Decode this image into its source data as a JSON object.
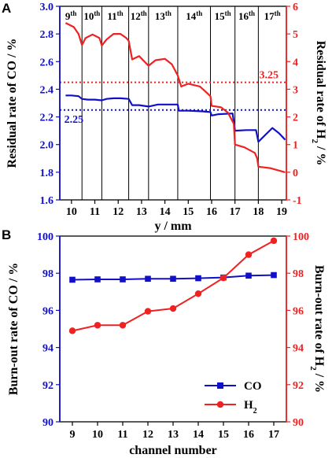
{
  "chart_data": [
    {
      "panel_label": "A",
      "type": "line",
      "xlabel": "y / mm",
      "ylabel_left": "Residual rate of CO / %",
      "ylabel_right_main": "Residual rate of H",
      "ylabel_right_sub": "2",
      "ylabel_right_tail": " / %",
      "xlim": [
        9.5,
        19.2
      ],
      "ylim_left": [
        1.6,
        3.0
      ],
      "ylim_right": [
        -1,
        6
      ],
      "x_ticks": [
        "10",
        "11",
        "12",
        "13",
        "14",
        "15",
        "16",
        "17",
        "18",
        "19"
      ],
      "y_left_ticks": [
        "1.6",
        "1.8",
        "2.0",
        "2.2",
        "2.4",
        "2.6",
        "2.8",
        "3.0"
      ],
      "y_right_ticks": [
        "-1",
        "0",
        "1",
        "2",
        "3",
        "4",
        "5",
        "6"
      ],
      "colors": {
        "co": "#1010c8",
        "h2": "#ee2222"
      },
      "regions": [
        {
          "num": "9",
          "sup": "th"
        },
        {
          "num": "10",
          "sup": "th"
        },
        {
          "num": "11",
          "sup": "th"
        },
        {
          "num": "12",
          "sup": "th"
        },
        {
          "num": "13",
          "sup": "th"
        },
        {
          "num": "14",
          "sup": "th"
        },
        {
          "num": "15",
          "sup": "th"
        },
        {
          "num": "16",
          "sup": "th"
        },
        {
          "num": "17",
          "sup": "th"
        }
      ],
      "region_bounds": [
        9.5,
        10.45,
        11.3,
        12.45,
        13.3,
        14.55,
        15.95,
        17.0,
        18.0,
        19.2
      ],
      "reference_lines": [
        {
          "series": "H2",
          "axis": "right",
          "value": 3.25,
          "label": "3.25"
        },
        {
          "series": "CO",
          "axis": "left",
          "value": 2.25,
          "label": "2.25"
        }
      ],
      "series": [
        {
          "axis": "left",
          "points": [
            [
              9.75,
              2.355
            ],
            [
              10.0,
              2.355
            ],
            [
              10.3,
              2.35
            ],
            [
              10.45,
              2.33
            ],
            [
              10.7,
              2.325
            ],
            [
              11.0,
              2.325
            ],
            [
              11.3,
              2.32
            ],
            [
              11.5,
              2.33
            ],
            [
              11.8,
              2.335
            ],
            [
              12.1,
              2.335
            ],
            [
              12.45,
              2.33
            ],
            [
              12.6,
              2.285
            ],
            [
              12.9,
              2.285
            ],
            [
              13.3,
              2.275
            ],
            [
              13.7,
              2.29
            ],
            [
              14.0,
              2.29
            ],
            [
              14.3,
              2.29
            ],
            [
              14.55,
              2.29
            ],
            [
              14.6,
              2.245
            ],
            [
              15.0,
              2.245
            ],
            [
              15.6,
              2.24
            ],
            [
              15.95,
              2.235
            ],
            [
              16.0,
              2.21
            ],
            [
              16.3,
              2.22
            ],
            [
              16.9,
              2.225
            ],
            [
              17.0,
              2.1
            ],
            [
              17.5,
              2.105
            ],
            [
              17.9,
              2.105
            ],
            [
              18.0,
              2.02
            ],
            [
              18.3,
              2.07
            ],
            [
              18.6,
              2.12
            ],
            [
              18.9,
              2.08
            ],
            [
              19.15,
              2.035
            ]
          ]
        },
        {
          "axis": "right",
          "points": [
            [
              9.75,
              5.4
            ],
            [
              10.1,
              5.25
            ],
            [
              10.3,
              5.0
            ],
            [
              10.45,
              4.6
            ],
            [
              10.6,
              4.85
            ],
            [
              10.9,
              4.98
            ],
            [
              11.2,
              4.85
            ],
            [
              11.3,
              4.58
            ],
            [
              11.5,
              4.8
            ],
            [
              11.8,
              5.0
            ],
            [
              12.1,
              5.0
            ],
            [
              12.35,
              4.85
            ],
            [
              12.45,
              4.75
            ],
            [
              12.6,
              4.08
            ],
            [
              12.9,
              4.2
            ],
            [
              13.3,
              3.85
            ],
            [
              13.6,
              4.05
            ],
            [
              14.0,
              4.1
            ],
            [
              14.3,
              3.9
            ],
            [
              14.55,
              3.5
            ],
            [
              14.7,
              3.1
            ],
            [
              15.0,
              3.2
            ],
            [
              15.5,
              3.1
            ],
            [
              15.95,
              2.75
            ],
            [
              16.0,
              2.4
            ],
            [
              16.4,
              2.35
            ],
            [
              16.7,
              2.15
            ],
            [
              16.95,
              1.75
            ],
            [
              17.0,
              1.0
            ],
            [
              17.4,
              0.9
            ],
            [
              17.85,
              0.7
            ],
            [
              17.95,
              0.5
            ],
            [
              18.0,
              0.2
            ],
            [
              18.5,
              0.15
            ],
            [
              19.15,
              0.0
            ]
          ]
        }
      ]
    },
    {
      "panel_label": "B",
      "type": "line",
      "xlabel": "channel number",
      "ylabel_left": "Burn-out rate of CO / %",
      "ylabel_right_main": "Burn-out rate of H",
      "ylabel_right_sub": "2",
      "ylabel_right_tail": " / %",
      "x": [
        9,
        10,
        11,
        12,
        13,
        14,
        15,
        16,
        17
      ],
      "xlim": [
        8.5,
        17.5
      ],
      "ylim_left": [
        90,
        100
      ],
      "ylim_right": [
        90,
        100
      ],
      "x_ticks": [
        "9",
        "10",
        "11",
        "12",
        "13",
        "14",
        "15",
        "16",
        "17"
      ],
      "y_left_ticks": [
        "90",
        "92",
        "94",
        "96",
        "98",
        "100"
      ],
      "y_right_ticks": [
        "90",
        "92",
        "94",
        "96",
        "98",
        "100"
      ],
      "legend_position": "bottom-right",
      "series": [
        {
          "name": "CO",
          "sub": "",
          "color": "#1010c8",
          "marker": "square",
          "axis": "left",
          "values": [
            97.65,
            97.67,
            97.67,
            97.7,
            97.7,
            97.73,
            97.77,
            97.87,
            97.9
          ]
        },
        {
          "name": "H",
          "sub": "2",
          "color": "#ee2222",
          "marker": "circle",
          "axis": "right",
          "values": [
            94.9,
            95.2,
            95.2,
            95.95,
            96.1,
            96.9,
            97.75,
            99.0,
            99.75
          ]
        }
      ]
    }
  ]
}
